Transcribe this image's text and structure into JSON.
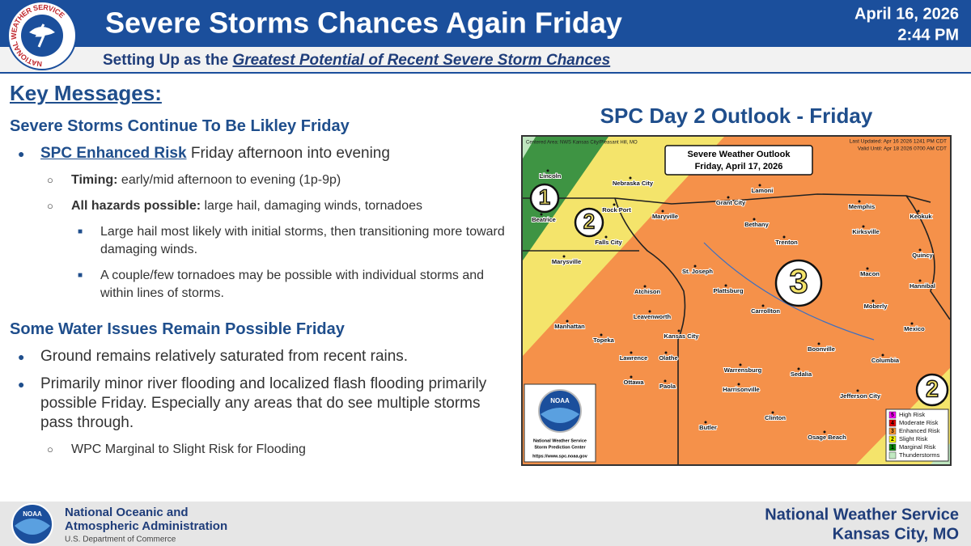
{
  "header": {
    "logo_text": "NATIONAL WEATHER SERVICE",
    "title": "Severe Storms Chances Again Friday",
    "date": "April 16, 2026",
    "time": "2:44 PM",
    "subtitle_prefix": "Setting Up as the ",
    "subtitle_emphasis": "Greatest Potential of Recent Severe Storm Chances"
  },
  "key_messages": {
    "heading": "Key Messages:",
    "sections": [
      {
        "heading": "Severe Storms Continue To Be Likley Friday",
        "bullets": [
          {
            "level": 1,
            "lead": "SPC Enhanced Risk",
            "text": " Friday afternoon into evening"
          },
          {
            "level": 2,
            "lead": "Timing:",
            "text": " early/mid afternoon to evening (1p-9p)"
          },
          {
            "level": 2,
            "lead": "All hazards possible:",
            "text": " large hail, damaging winds, tornadoes"
          },
          {
            "level": 3,
            "text": "Large hail most likely with initial storms, then transitioning more toward damaging winds."
          },
          {
            "level": 3,
            "text": "A couple/few tornadoes may be possible with individual storms and within lines of storms."
          }
        ]
      },
      {
        "heading": "Some Water Issues Remain Possible Friday",
        "bullets": [
          {
            "level": 1,
            "text": "Ground remains relatively saturated from recent rains."
          },
          {
            "level": 1,
            "text": "Primarily minor river flooding and localized flash flooding primarily possible Friday. Especially any areas that do see multiple storms pass through."
          },
          {
            "level": 2,
            "text": "WPC Marginal to Slight Risk for Flooding"
          }
        ]
      }
    ]
  },
  "map": {
    "title": "SPC Day 2 Outlook - Friday",
    "centered_area": "Centered Area: NWS Kansas City/Pleasant Hill, MO",
    "last_updated": "Last Updated: Apr 16 2026 1241 PM CDT",
    "valid_until": "Valid Until: Apr 18 2026 0700 AM CDT",
    "outlook_title": "Severe Weather Outlook",
    "outlook_date": "Friday, April 17, 2026",
    "risk_labels": [
      "1",
      "2",
      "3",
      "2"
    ],
    "cities": [
      "Lincoln",
      "Nebraska City",
      "Beatrice",
      "Rock Port",
      "Maryville",
      "Grant City",
      "Lamoni",
      "Bethany",
      "Falls City",
      "Memphis",
      "Keokuk",
      "Kirksville",
      "Marysville",
      "Trenton",
      "St. Joseph",
      "Quincy",
      "Atchison",
      "Plattsburg",
      "Macon",
      "Hannibal",
      "Carrollton",
      "Leavenworth",
      "Moberly",
      "Manhattan",
      "Kansas City",
      "Mexico",
      "Topeka",
      "Lawrence",
      "Olathe",
      "Boonville",
      "Columbia",
      "Warrensburg",
      "Sedalia",
      "Ottawa",
      "Paola",
      "Harrisonville",
      "Jefferson City",
      "Clinton",
      "Butler",
      "Osage Beach"
    ],
    "legend": [
      {
        "number": "5",
        "label": "High Risk"
      },
      {
        "number": "4",
        "label": "Moderate Risk"
      },
      {
        "number": "3",
        "label": "Enhanced Risk"
      },
      {
        "number": "2",
        "label": "Slight Risk"
      },
      {
        "number": "1",
        "label": "Marginal Risk"
      },
      {
        "label": "Thunderstorms"
      }
    ],
    "badge": {
      "logo_text": "NOAA",
      "line1": "National Weather Service",
      "line2": "Storm Prediction Center",
      "url": "https://www.spc.noaa.gov"
    }
  },
  "footer": {
    "logo_text": "NOAA",
    "agency_line1": "National Oceanic and",
    "agency_line2": "Atmospheric Administration",
    "department": "U.S. Department of Commerce",
    "office": "National Weather Service",
    "location": "Kansas City, MO"
  }
}
